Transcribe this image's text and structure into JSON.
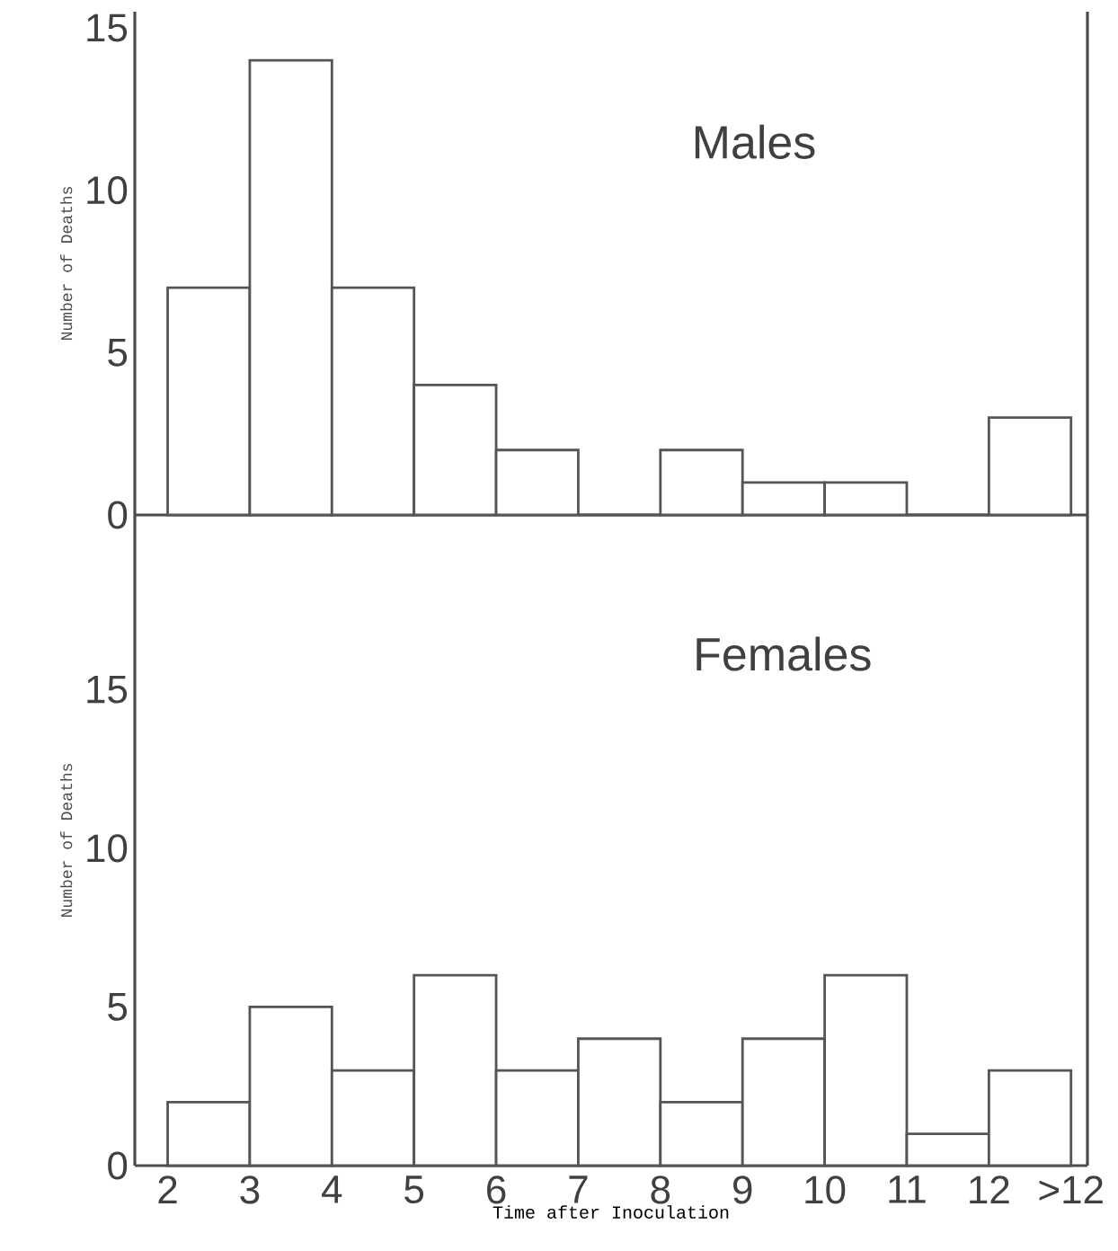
{
  "chart_data": [
    {
      "type": "histogram",
      "title": "Males",
      "ylabel": "Number of Deaths",
      "bins": [
        2,
        3,
        4,
        5,
        6,
        7,
        8,
        9,
        10,
        11,
        12,
        13
      ],
      "values": [
        7,
        14,
        7,
        4,
        2,
        0,
        2,
        1,
        1,
        0,
        3
      ],
      "color": "#555555",
      "xlim": [
        1.6,
        13.2
      ],
      "ylim": [
        0,
        15.5
      ],
      "yticks": [
        0,
        5,
        10,
        15
      ],
      "tick_labels": "y",
      "grid": false
    },
    {
      "type": "histogram",
      "title": "Females",
      "ylabel": "Number of Deaths",
      "xlabel": "Time after Inoculation",
      "bins": [
        2,
        3,
        4,
        5,
        6,
        7,
        8,
        9,
        10,
        11,
        12,
        13
      ],
      "values": [
        2,
        5,
        3,
        6,
        3,
        4,
        2,
        4,
        6,
        1,
        3
      ],
      "color": "#555555",
      "xlim": [
        1.6,
        13.2
      ],
      "ylim": [
        0,
        20.5
      ],
      "xticks": [
        2,
        3,
        4,
        5,
        6,
        7,
        8,
        9,
        10,
        11,
        12,
        {
          "value": 13,
          "label": ">12"
        }
      ],
      "yticks": [
        0,
        5,
        10,
        15
      ],
      "grid": false
    }
  ]
}
